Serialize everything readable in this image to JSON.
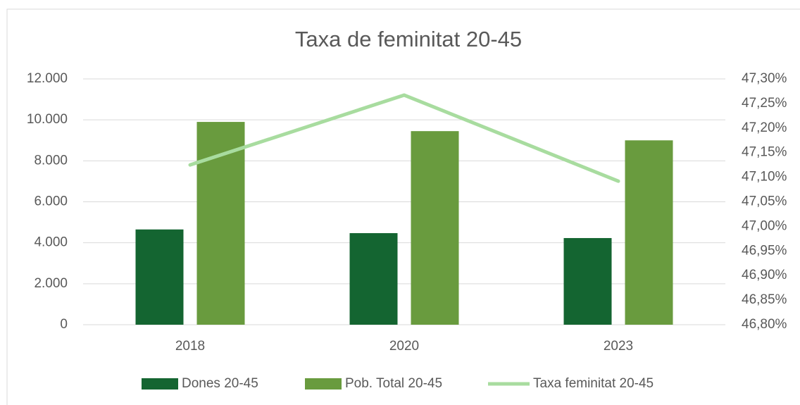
{
  "chart_data": {
    "type": "bar",
    "title": "Taxa de feminitat 20-45",
    "categories": [
      "2018",
      "2020",
      "2023"
    ],
    "series": [
      {
        "name": "Dones 20-45",
        "color": "#146531",
        "values": [
          4650,
          4470,
          4230
        ]
      },
      {
        "name": "Pob. Total 20-45",
        "color": "#699b3e",
        "values": [
          9900,
          9450,
          9000
        ]
      },
      {
        "name": "Taxa feminitat 20-45",
        "type": "line",
        "axis": "y2",
        "color": "#a8dc9f",
        "values": [
          47.125,
          47.267,
          47.092
        ]
      }
    ],
    "ylim": [
      0,
      12000
    ],
    "yticks": [
      0,
      {
        "value": 2000,
        "label": "2.000"
      },
      {
        "value": 4000,
        "label": "4.000"
      },
      {
        "value": 6000,
        "label": "6.000"
      },
      {
        "value": 8000,
        "label": "8.000"
      },
      {
        "value": 10000,
        "label": "10.000"
      },
      {
        "value": 12000,
        "label": "12.000"
      }
    ],
    "y2lim": [
      46.8,
      47.3
    ],
    "y2ticks": [
      {
        "value": 46.8,
        "label": "46,80%"
      },
      {
        "value": 46.85,
        "label": "46,85%"
      },
      {
        "value": 46.9,
        "label": "46,90%"
      },
      {
        "value": 46.95,
        "label": "46,95%"
      },
      {
        "value": 47.0,
        "label": "47,00%"
      },
      {
        "value": 47.05,
        "label": "47,05%"
      },
      {
        "value": 47.1,
        "label": "47,10%"
      },
      {
        "value": 47.15,
        "label": "47,15%"
      },
      {
        "value": 47.2,
        "label": "47,20%"
      },
      {
        "value": 47.25,
        "label": "47,25%"
      },
      {
        "value": 47.3,
        "label": "47,30%"
      }
    ],
    "grid": true,
    "legend": "bottom"
  }
}
